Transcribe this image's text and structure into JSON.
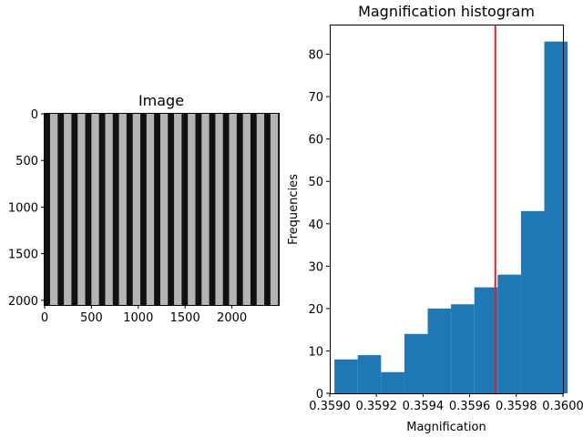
{
  "chart_data": [
    {
      "type": "image",
      "title": "Image",
      "description": "grayscale image of vertical bright and dark stripes",
      "xlim": [
        0,
        2500
      ],
      "ylim": [
        2050,
        0
      ],
      "xticks": [
        0,
        500,
        1000,
        1500,
        2000
      ],
      "yticks": [
        0,
        500,
        1000,
        1500,
        2000
      ],
      "stripe_count": 17,
      "colors": {
        "bright": "#b4b4b4",
        "dark": "#111111"
      }
    },
    {
      "type": "bar",
      "title": "Magnification histogram",
      "xlabel": "Magnification",
      "ylabel": "Frequencies",
      "xlim": [
        0.359,
        0.36
      ],
      "ylim": [
        0,
        87
      ],
      "xticks": [
        "0.3590",
        "0.3592",
        "0.3594",
        "0.3596",
        "0.3598",
        "0.3600"
      ],
      "yticks": [
        0,
        10,
        20,
        30,
        40,
        50,
        60,
        70,
        80
      ],
      "bin_edges": [
        0.35902,
        0.35912,
        0.35922,
        0.35932,
        0.35942,
        0.35952,
        0.35962,
        0.35972,
        0.35982,
        0.35992,
        0.36002
      ],
      "values": [
        8,
        9,
        5,
        14,
        20,
        21,
        25,
        28,
        43,
        83
      ],
      "vline": 0.35971,
      "colors": {
        "bar": "#1f77b4",
        "vline": "#d62728"
      }
    }
  ]
}
